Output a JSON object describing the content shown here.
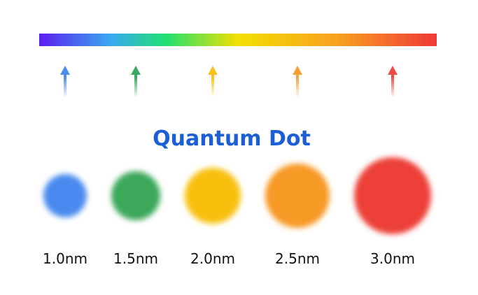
{
  "title": "Quantum Dot",
  "dots": [
    {
      "label": "1.0nm"
    },
    {
      "label": "1.5nm"
    },
    {
      "label": "2.0nm"
    },
    {
      "label": "2.5nm"
    },
    {
      "label": "3.0nm"
    }
  ]
}
